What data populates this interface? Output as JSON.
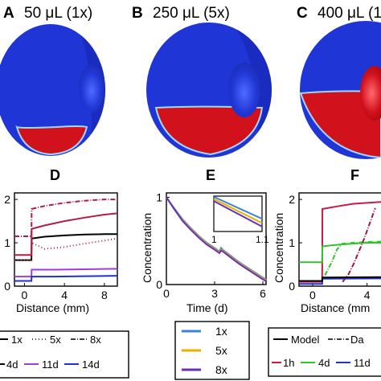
{
  "panels_top": [
    {
      "letter": "A",
      "title": "50 μL (1x)"
    },
    {
      "letter": "B",
      "title": "250 μL (5x)"
    },
    {
      "letter": "C",
      "title": "400 μL (1"
    }
  ],
  "colors": {
    "eye_blue": "#1f35d6",
    "eye_red": "#d1111c",
    "rim": "#9fd8ff"
  },
  "chart_data": [
    {
      "panel": "D",
      "type": "line",
      "xlabel": "Distance (mm)",
      "ylabel": "",
      "xlim": [
        -1,
        9.3
      ],
      "ylim": [
        0,
        2.15
      ],
      "xticks": [
        0,
        4,
        8
      ],
      "yticks": [
        0,
        1,
        2
      ],
      "series": [
        {
          "name": "1x",
          "color": "#000000",
          "dash": "solid",
          "x": [
            -1,
            0.7,
            0.72,
            2,
            4,
            6,
            8,
            9.3
          ],
          "y": [
            0.6,
            0.6,
            1.1,
            1.14,
            1.17,
            1.19,
            1.2,
            1.2
          ]
        },
        {
          "name": "1x 4d",
          "color": "#b01d45",
          "dash": "solid",
          "x": [
            -1,
            0.7,
            0.72,
            2,
            4,
            6,
            8,
            9.3
          ],
          "y": [
            0.72,
            0.72,
            1.32,
            1.4,
            1.5,
            1.58,
            1.65,
            1.68
          ]
        },
        {
          "name": "8x 4d",
          "color": "#b01d45",
          "dash": "dashdot",
          "x": [
            -1,
            0.7,
            0.72,
            2,
            4,
            6,
            8,
            9.3
          ],
          "y": [
            1.15,
            1.15,
            1.78,
            1.85,
            1.92,
            1.97,
            2.0,
            2.0
          ]
        },
        {
          "name": "5x 4d",
          "color": "#b01d45",
          "dash": "dotted",
          "x": [
            -1,
            0.7,
            0.72,
            2,
            4,
            6,
            8,
            9.3
          ],
          "y": [
            0.6,
            0.6,
            1.0,
            0.86,
            0.9,
            0.98,
            1.05,
            1.1
          ]
        },
        {
          "name": "1x 11d",
          "color": "#a23cd4",
          "dash": "solid",
          "x": [
            -1,
            0.7,
            0.72,
            3,
            6,
            9.3
          ],
          "y": [
            0.22,
            0.22,
            0.38,
            0.38,
            0.39,
            0.4
          ]
        },
        {
          "name": "1x 14d",
          "color": "#2033c8",
          "dash": "solid",
          "x": [
            -1,
            0.7,
            0.72,
            3,
            6,
            9.3
          ],
          "y": [
            0.12,
            0.12,
            0.22,
            0.22,
            0.23,
            0.24
          ]
        }
      ],
      "legend": {
        "line_types": [
          {
            "label": "1x",
            "dash": "solid"
          },
          {
            "label": "5x",
            "dash": "dotted"
          },
          {
            "label": "8x",
            "dash": "dashdot"
          }
        ],
        "times": [
          {
            "label": "4d",
            "color": "#b01d45"
          },
          {
            "label": "11d",
            "color": "#a23cd4"
          },
          {
            "label": "14d",
            "color": "#2033c8"
          }
        ]
      }
    },
    {
      "panel": "E",
      "type": "line",
      "xlabel": "Time (d)",
      "ylabel": "Concentration",
      "xlim": [
        0,
        6.2
      ],
      "ylim": [
        0,
        1.05
      ],
      "xticks": [
        0,
        3,
        6
      ],
      "yticks": [
        0,
        1
      ],
      "series": [
        {
          "name": "1x",
          "color": "#3a86d6",
          "x": [
            0,
            0.5,
            1,
            1.5,
            2,
            2.5,
            3,
            3.3,
            3.4,
            3.5,
            4,
            4.5,
            5,
            5.5,
            6,
            6.2
          ],
          "y": [
            1,
            0.87,
            0.75,
            0.65,
            0.56,
            0.48,
            0.42,
            0.38,
            0.42,
            0.4,
            0.33,
            0.26,
            0.2,
            0.14,
            0.08,
            0.06
          ]
        },
        {
          "name": "5x",
          "color": "#e8b100",
          "x": [
            0,
            0.5,
            1,
            1.5,
            2,
            2.5,
            3,
            3.3,
            3.4,
            3.5,
            4,
            4.5,
            5,
            5.5,
            6,
            6.2
          ],
          "y": [
            1,
            0.86,
            0.74,
            0.64,
            0.55,
            0.47,
            0.41,
            0.37,
            0.4,
            0.39,
            0.32,
            0.25,
            0.19,
            0.13,
            0.07,
            0.05
          ]
        },
        {
          "name": "8x",
          "color": "#6a2fb2",
          "x": [
            0,
            0.5,
            1,
            1.5,
            2,
            2.5,
            3,
            3.3,
            3.4,
            3.5,
            4,
            4.5,
            5,
            5.5,
            6,
            6.2
          ],
          "y": [
            1,
            0.86,
            0.73,
            0.63,
            0.54,
            0.46,
            0.4,
            0.36,
            0.39,
            0.38,
            0.31,
            0.24,
            0.18,
            0.12,
            0.06,
            0.04
          ]
        }
      ],
      "inset": {
        "xticks": [
          "1",
          "1.1"
        ],
        "series": [
          {
            "color": "#3a86d6",
            "y0": 0.98,
            "y1": 0.36
          },
          {
            "color": "#e8b100",
            "y0": 0.92,
            "y1": 0.24
          },
          {
            "color": "#6a2fb2",
            "y0": 0.86,
            "y1": 0.14
          }
        ]
      },
      "legend": [
        {
          "label": "1x",
          "color": "#3a86d6"
        },
        {
          "label": "5x",
          "color": "#e8b100"
        },
        {
          "label": "8x",
          "color": "#6a2fb2"
        }
      ]
    },
    {
      "panel": "F",
      "type": "line",
      "xlabel": "Distance (mm",
      "ylabel": "Concentration",
      "xlim": [
        -1,
        5.5
      ],
      "ylim": [
        0,
        2.15
      ],
      "xticks": [
        0,
        4
      ],
      "yticks": [
        0,
        1,
        2
      ],
      "series": [
        {
          "name": "1h model",
          "color": "#c81b44",
          "dash": "solid",
          "x": [
            -1,
            0.7,
            0.72,
            2,
            3,
            4,
            5.5
          ],
          "y": [
            0.1,
            0.1,
            1.78,
            1.85,
            1.9,
            1.92,
            1.95
          ]
        },
        {
          "name": "4d model",
          "color": "#34c22e",
          "dash": "solid",
          "x": [
            -1,
            0.7,
            0.72,
            2,
            3,
            4,
            5.5
          ],
          "y": [
            0.55,
            0.55,
            0.92,
            0.96,
            0.98,
            1.0,
            1.0
          ]
        },
        {
          "name": "4d data",
          "color": "#34c22e",
          "dash": "dashdot",
          "x": [
            0.9,
            1.4,
            1.8,
            2.2,
            3,
            4,
            5.5
          ],
          "y": [
            0.25,
            0.55,
            0.85,
            0.98,
            1.0,
            1.02,
            1.03
          ]
        },
        {
          "name": "1h data",
          "color": "#a0163c",
          "dash": "dashdot",
          "x": [
            2.2,
            2.6,
            3.0,
            3.4,
            3.8,
            4.2,
            4.6
          ],
          "y": [
            0.1,
            0.25,
            0.5,
            0.8,
            1.1,
            1.45,
            1.8
          ]
        },
        {
          "name": "11d model",
          "color": "#2033c8",
          "dash": "solid",
          "x": [
            -1,
            0.7,
            0.72,
            5.5
          ],
          "y": [
            0.05,
            0.05,
            0.17,
            0.18
          ]
        },
        {
          "name": "model black",
          "color": "#000000",
          "dash": "solid",
          "x": [
            -1,
            0.7,
            0.72,
            5.5
          ],
          "y": [
            0.12,
            0.12,
            0.2,
            0.21
          ]
        }
      ],
      "legend": {
        "types": [
          {
            "label": "Model",
            "dash": "solid"
          },
          {
            "label": "Da",
            "dash": "dashdot"
          }
        ],
        "times": [
          {
            "label": "1h",
            "color": "#c81b44"
          },
          {
            "label": "4d",
            "color": "#34c22e"
          },
          {
            "label": "11d",
            "color": "#2033c8"
          }
        ]
      }
    }
  ]
}
